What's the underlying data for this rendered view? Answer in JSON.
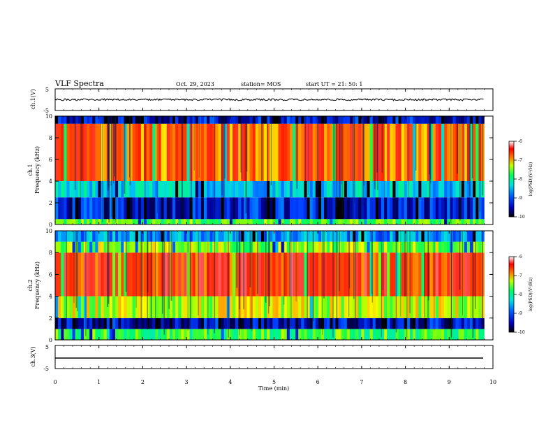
{
  "header": {
    "title": "VLF Spectra",
    "date": "Oct. 29, 2023",
    "station": "station= MOS",
    "start": "start  UT  =   21: 50: 1"
  },
  "colors": {
    "axes": "#000000",
    "spectrogram_cmap": [
      "#000080",
      "#0000ff",
      "#00a0ff",
      "#00e0e0",
      "#00ff80",
      "#80ff00",
      "#ffff00",
      "#ff8000",
      "#ff0000",
      "#ffffff"
    ]
  },
  "chart_data": [
    {
      "type": "line",
      "name": "ch1-waveform",
      "ylabel": "ch.1(V)",
      "ylim": [
        -5,
        5
      ],
      "ytick_labels": [
        "5",
        "-5"
      ],
      "xlim": [
        0,
        10
      ],
      "level": 0,
      "grid": false
    },
    {
      "type": "heatmap",
      "name": "ch1-spectrogram",
      "ylabel": "ch.1\nFrequency (kHz)",
      "ylabel_lines": [
        "ch.1",
        "Frequency (kHz)"
      ],
      "ylim": [
        0,
        10
      ],
      "ytick_labels": [
        "0",
        "2",
        "4",
        "6",
        "8",
        "10"
      ],
      "xlim": [
        0,
        10
      ],
      "data_end_min": 9.8,
      "colorbar": {
        "label": "log(PSD)(V²/Hz)",
        "range": [
          -10,
          -6
        ],
        "tick_labels": [
          "-6",
          "-7",
          "-8",
          "-9",
          "-10"
        ]
      },
      "bands": [
        {
          "from": 0,
          "to": 0.5,
          "level": -7.8
        },
        {
          "from": 0.5,
          "to": 2.5,
          "level": -9.4
        },
        {
          "from": 2.5,
          "to": 4,
          "level": -8.6
        },
        {
          "from": 4,
          "to": 9.3,
          "level": -6.8
        },
        {
          "from": 9.3,
          "to": 10,
          "level": -9.5
        }
      ]
    },
    {
      "type": "heatmap",
      "name": "ch2-spectrogram",
      "ylabel_lines": [
        "ch.2",
        "Frequency (kHz)"
      ],
      "ylim": [
        0,
        10
      ],
      "ytick_labels": [
        "0",
        "2",
        "4",
        "6",
        "8",
        "10"
      ],
      "xlim": [
        0,
        10
      ],
      "data_end_min": 9.8,
      "colorbar": {
        "label": "log(PSD)(V²/Hz)",
        "range": [
          -10,
          -6
        ],
        "tick_labels": [
          "-6",
          "-7",
          "-8",
          "-9",
          "-10"
        ]
      },
      "bands": [
        {
          "from": 0,
          "to": 1,
          "level": -7.9
        },
        {
          "from": 1,
          "to": 2,
          "level": -9.5
        },
        {
          "from": 2,
          "to": 4,
          "level": -7.5
        },
        {
          "from": 4,
          "to": 8,
          "level": -6.6
        },
        {
          "from": 8,
          "to": 9,
          "level": -7.6
        },
        {
          "from": 9,
          "to": 10,
          "level": -8.8
        }
      ]
    },
    {
      "type": "line",
      "name": "ch3-waveform",
      "ylabel": "ch.3(V)",
      "ylim": [
        -5,
        5
      ],
      "ytick_labels": [
        "5",
        "-5"
      ],
      "xlim": [
        0,
        10
      ],
      "xlabel": "Time  (min)",
      "xtick_labels": [
        "0",
        "1",
        "2",
        "3",
        "4",
        "5",
        "6",
        "7",
        "8",
        "9",
        "10"
      ],
      "level": 0,
      "grid": false
    }
  ]
}
